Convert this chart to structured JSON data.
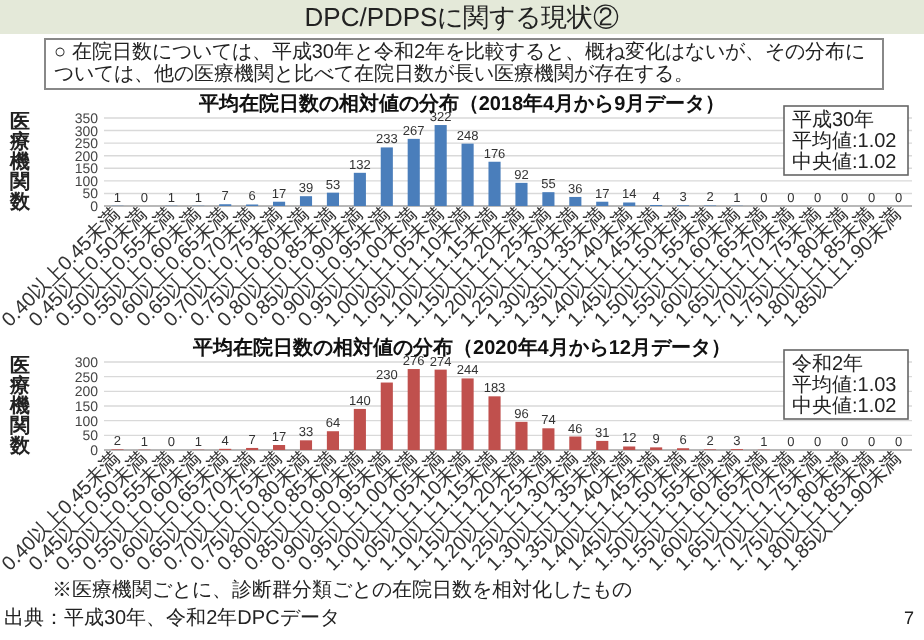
{
  "chart_data": [
    {
      "type": "bar",
      "title": "平均在院日数の相対値の分布（2018年4月から9月データ）",
      "ylabel": "医療機関数",
      "categories": [
        "0.40以上0.45未満",
        "0.45以上0.50未満",
        "0.50以上0.55未満",
        "0.55以上0.60未満",
        "0.60以上0.65未満",
        "0.65以上0.70未満",
        "0.70以上0.75未満",
        "0.75以上0.80未満",
        "0.80以上0.85未満",
        "0.85以上0.90未満",
        "0.90以上0.95未満",
        "0.95以上1.00未満",
        "1.00以上1.05未満",
        "1.05以上1.10未満",
        "1.10以上1.15未満",
        "1.15以上1.20未満",
        "1.20以上1.25未満",
        "1.25以上1.30未満",
        "1.30以上1.35未満",
        "1.35以上1.40未満",
        "1.40以上1.45未満",
        "1.45以上1.50未満",
        "1.50以上1.55未満",
        "1.55以上1.60未満",
        "1.60以上1.65未満",
        "1.65以上1.70未満",
        "1.70以上1.75未満",
        "1.75以上1.80未満",
        "1.80以上1.85未満",
        "1.85以上1.90未満"
      ],
      "values": [
        1,
        0,
        1,
        1,
        7,
        6,
        17,
        39,
        53,
        132,
        233,
        267,
        322,
        248,
        176,
        92,
        55,
        36,
        17,
        14,
        4,
        3,
        2,
        1,
        0,
        0,
        0,
        0,
        0,
        0
      ],
      "color": "#4a7ebb",
      "ylim": [
        0,
        350
      ],
      "yticks": [
        0,
        50,
        100,
        150,
        200,
        250,
        300,
        350
      ],
      "grid": "y",
      "data_labels": true,
      "annotations": [
        "DPC/PDPSに関する現状②",
        "○ 在院日数については、平成30年と令和2年を比較すると、概ね変化はないが、その分布については、他の医療機関と比べて在院日数が長い医療機関が存在する。",
        "平成30年",
        "平均値:1.02",
        "中央値:1.02"
      ]
    },
    {
      "type": "bar",
      "title": "平均在院日数の相対値の分布（2020年4月から12月データ）",
      "ylabel": "医療機関数",
      "categories": [
        "0.40以上0.45未満",
        "0.45以上0.50未満",
        "0.50以上0.55未満",
        "0.55以上0.60未満",
        "0.60以上0.65未満",
        "0.65以上0.70未満",
        "0.70以上0.75未満",
        "0.75以上0.80未満",
        "0.80以上0.85未満",
        "0.85以上0.90未満",
        "0.90以上0.95未満",
        "0.95以上1.00未満",
        "1.00以上1.05未満",
        "1.05以上1.10未満",
        "1.10以上1.15未満",
        "1.15以上1.20未満",
        "1.20以上1.25未満",
        "1.25以上1.30未満",
        "1.30以上1.35未満",
        "1.35以上1.40未満",
        "1.40以上1.45未満",
        "1.45以上1.50未満",
        "1.50以上1.55未満",
        "1.55以上1.60未満",
        "1.60以上1.65未満",
        "1.65以上1.70未満",
        "1.70以上1.75未満",
        "1.75以上1.80未満",
        "1.80以上1.85未満",
        "1.85以上1.90未満"
      ],
      "values": [
        2,
        1,
        0,
        1,
        4,
        7,
        17,
        33,
        64,
        140,
        230,
        276,
        274,
        244,
        183,
        96,
        74,
        46,
        31,
        12,
        9,
        6,
        2,
        3,
        1,
        0,
        0,
        0,
        0,
        0
      ],
      "color": "#c0504d",
      "ylim": [
        0,
        300
      ],
      "yticks": [
        0,
        50,
        100,
        150,
        200,
        250,
        300
      ],
      "grid": "y",
      "data_labels": true,
      "annotations": [
        "令和2年",
        "平均値:1.03",
        "中央値:1.02",
        "※医療機関ごとに、診断群分類ごとの在院日数を相対化したもの",
        "出典：平成30年、令和2年DPCデータ",
        "7"
      ]
    }
  ]
}
